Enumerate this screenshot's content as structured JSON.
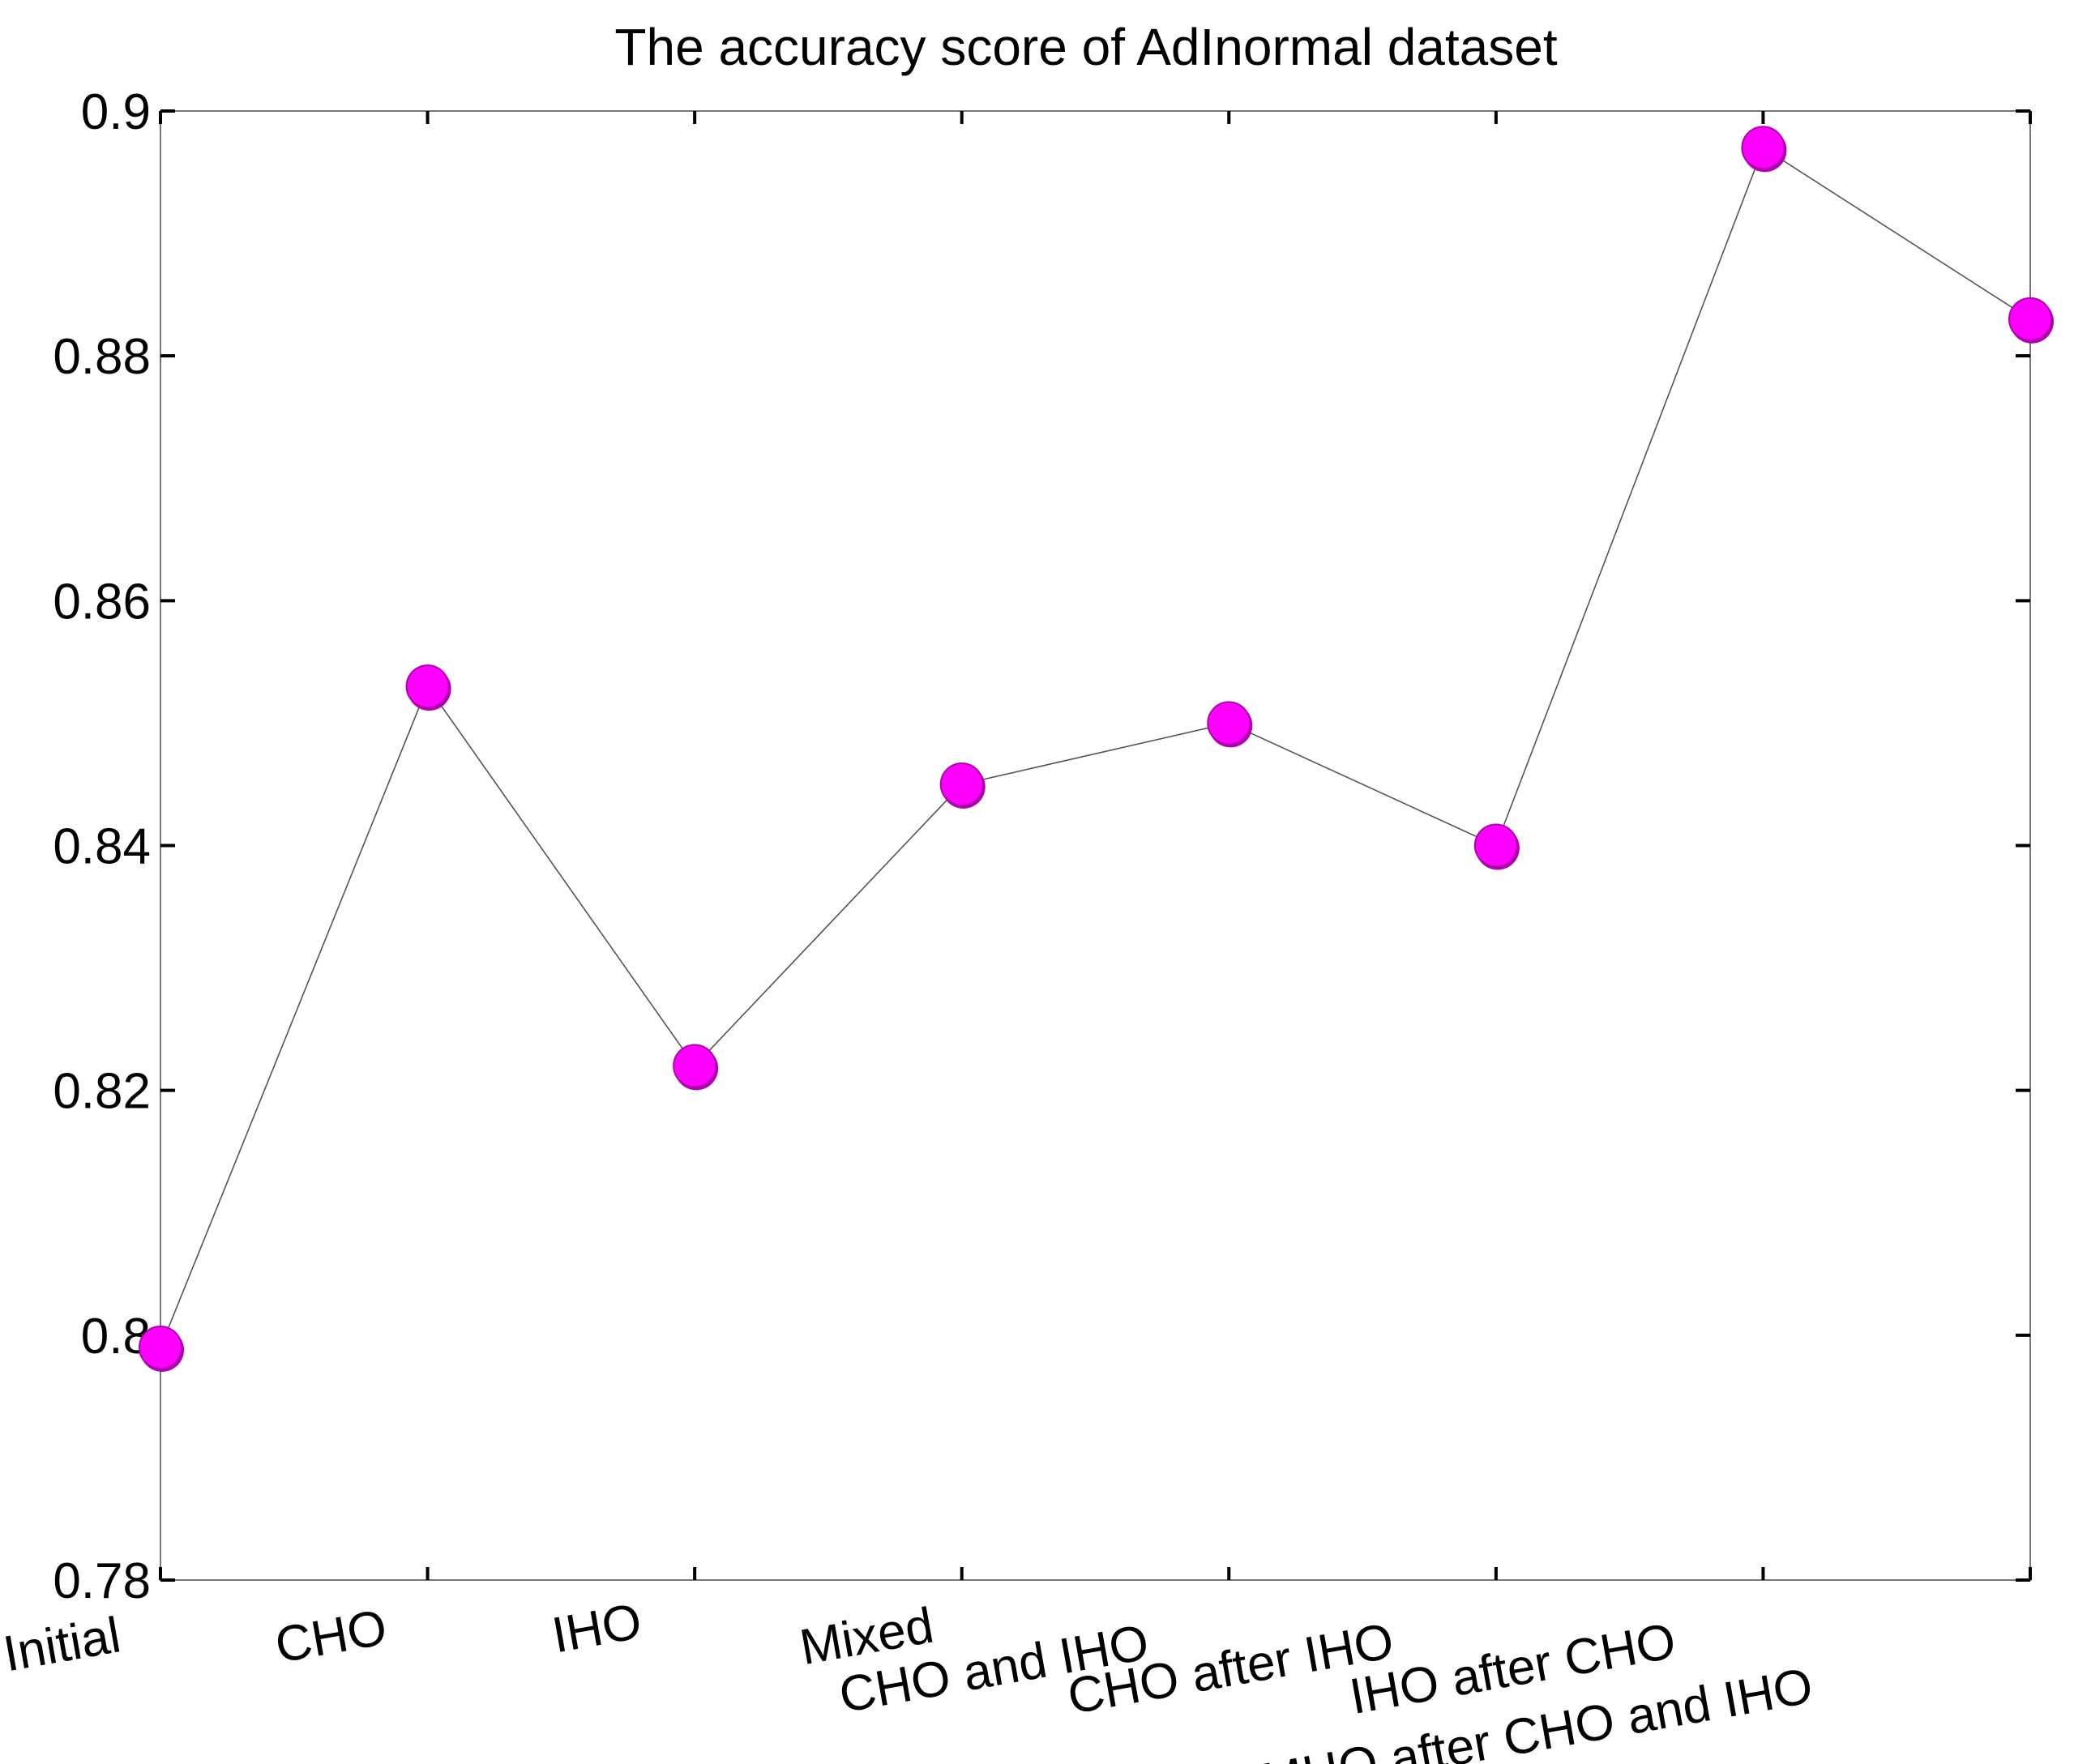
{
  "chart_data": {
    "type": "line",
    "title": "The accuracy score of AdInormal dataset",
    "xlabel": "",
    "ylabel": "",
    "categories": [
      "Initial",
      "CHO",
      "IHO",
      "Mixed",
      "CHO and IHO",
      "CHO after IHO",
      "IHO after CHO",
      "MHO after CHO and IHO"
    ],
    "series": [
      {
        "values": [
          0.799,
          0.853,
          0.822,
          0.845,
          0.85,
          0.84,
          0.897,
          0.883
        ]
      }
    ],
    "ylim": [
      0.78,
      0.9
    ],
    "yticks": [
      "0.78",
      "0.8",
      "0.82",
      "0.84",
      "0.86",
      "0.88",
      "0.9"
    ],
    "grid": false,
    "legend": "none",
    "colors": {
      "marker_fill": "#ff00ff",
      "marker_edge": "#b000b0",
      "line": "#555555",
      "axis": "#000000"
    }
  }
}
